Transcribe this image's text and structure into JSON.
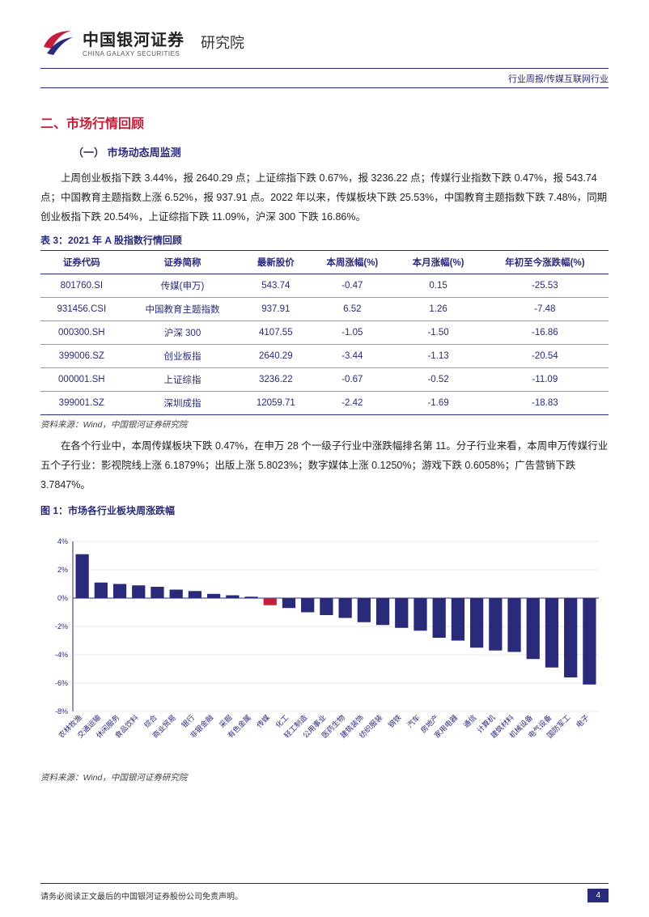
{
  "header": {
    "logo_cn": "中国银河证券",
    "logo_en": "CHINA GALAXY SECURITIES",
    "institute": "研究院",
    "sub_text": "行业周报/传媒互联网行业"
  },
  "section": {
    "heading": "二、市场行情回顾",
    "subsection": "（一） 市场动态周监测",
    "paragraph1": "上周创业板指下跌 3.44%，报 2640.29 点；上证综指下跌 0.67%，报 3236.22 点；传媒行业指数下跌 0.47%，报 543.74 点；中国教育主题指数上涨 6.52%，报 937.91 点。2022 年以来，传媒板块下跌 25.53%，中国教育主题指数下跌 7.48%，同期创业板指下跌 20.54%，上证综指下跌 11.09%，沪深 300 下跌 16.86%。",
    "paragraph2": "在各个行业中，本周传媒板块下跌 0.47%，在申万 28 个一级子行业中涨跌幅排名第 11。分子行业来看，本周申万传媒行业五个子行业：影视院线上涨 6.1879%；出版上涨 5.8023%；数字媒体上涨 0.1250%；游戏下跌 0.6058%；广告营销下跌 3.7847%。"
  },
  "table": {
    "title": "表 3：2021 年 A 股指数行情回顾",
    "columns": [
      "证券代码",
      "证券简称",
      "最新股价",
      "本周涨幅(%)",
      "本月涨幅(%)",
      "年初至今涨跌幅(%)"
    ],
    "rows": [
      [
        "801760.SI",
        "传媒(申万)",
        "543.74",
        "-0.47",
        "0.15",
        "-25.53"
      ],
      [
        "931456.CSI",
        "中国教育主题指数",
        "937.91",
        "6.52",
        "1.26",
        "-7.48"
      ],
      [
        "000300.SH",
        "沪深 300",
        "4107.55",
        "-1.05",
        "-1.50",
        "-16.86"
      ],
      [
        "399006.SZ",
        "创业板指",
        "2640.29",
        "-3.44",
        "-1.13",
        "-20.54"
      ],
      [
        "000001.SH",
        "上证综指",
        "3236.22",
        "-0.67",
        "-0.52",
        "-11.09"
      ],
      [
        "399001.SZ",
        "深圳成指",
        "12059.71",
        "-2.42",
        "-1.69",
        "-18.83"
      ]
    ],
    "source": "资料来源：Wind，中国银河证券研究院"
  },
  "chart": {
    "title": "图 1：市场各行业板块周涨跌幅",
    "type": "bar",
    "categories": [
      "农林牧渔",
      "交通运输",
      "休闲服务",
      "食品饮料",
      "综合",
      "商业贸易",
      "银行",
      "非银金融",
      "采掘",
      "有色金属",
      "传媒",
      "化工",
      "轻工制造",
      "公用事业",
      "医药生物",
      "建筑装饰",
      "纺织服装",
      "钢铁",
      "汽车",
      "房地产",
      "家用电器",
      "通信",
      "计算机",
      "建筑材料",
      "机械设备",
      "电气设备",
      "国防军工",
      "电子"
    ],
    "values": [
      3.1,
      1.1,
      1.0,
      0.9,
      0.8,
      0.6,
      0.5,
      0.3,
      0.2,
      0.1,
      -0.5,
      -0.7,
      -1.0,
      -1.2,
      -1.4,
      -1.7,
      -1.9,
      -2.1,
      -2.3,
      -2.8,
      -3.0,
      -3.5,
      -3.7,
      -3.8,
      -4.3,
      -4.9,
      -5.6,
      -6.1
    ],
    "highlight_index": 10,
    "bar_color": "#2a2a7a",
    "highlight_color": "#c41e3a",
    "grid_color": "#d0d0d8",
    "axis_color": "#2a2a7a",
    "text_color": "#2a2a7a",
    "label_fontsize": 9,
    "tick_fontsize": 9,
    "ylim": [
      -8,
      4
    ],
    "ytick_step": 2,
    "background_color": "#ffffff",
    "source": "资料来源：Wind，中国银河证券研究院"
  },
  "footer": {
    "text": "请务必阅读正文最后的中国银河证券股份公司免责声明。",
    "page": "4"
  }
}
